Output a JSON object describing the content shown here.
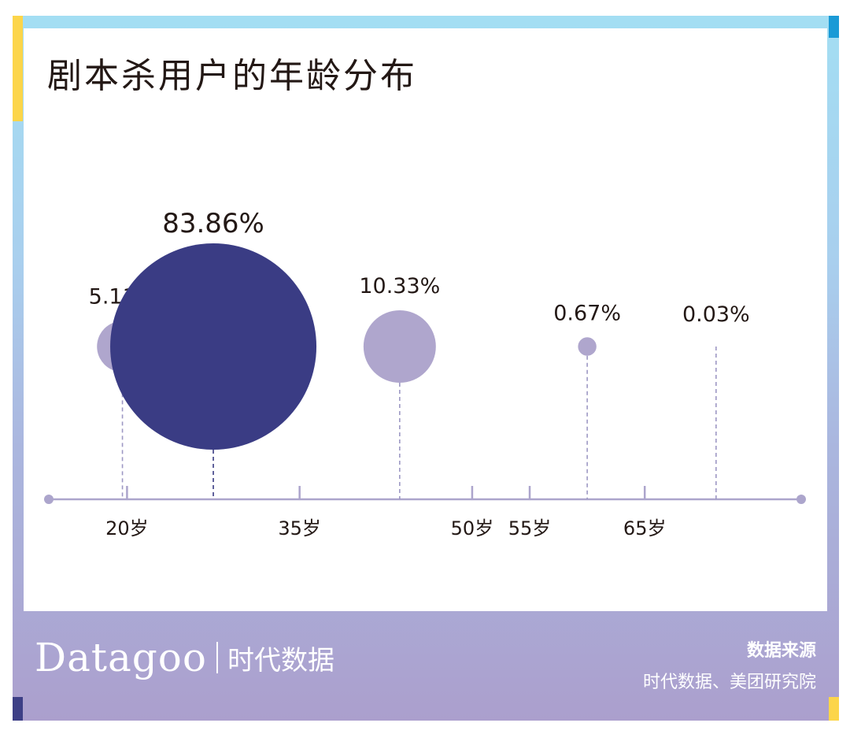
{
  "title": "剧本杀用户的年龄分布",
  "footer": {
    "logo_word": "Datagoo",
    "logo_cn": "时代数据",
    "source_title": "数据来源",
    "source_text": "时代数据、美团研究院"
  },
  "colors": {
    "primary": "#3a3c84",
    "secondary": "#afa6cd",
    "axis": "#aca5cc"
  },
  "chart_data": {
    "type": "scatter",
    "title": "剧本杀用户的年龄分布",
    "xaxis": {
      "ticks": [
        20,
        35,
        50,
        55,
        65
      ],
      "tick_labels": [
        "20岁",
        "35岁",
        "50岁",
        "55岁",
        "65岁"
      ],
      "range": [
        13.2,
        78.6
      ]
    },
    "bubbles": [
      {
        "x": 19.6,
        "value": 5.11,
        "label": "5.11%",
        "color": "#afa6cd"
      },
      {
        "x": 27.5,
        "value": 83.86,
        "label": "83.86%",
        "color": "#3a3c84"
      },
      {
        "x": 43.7,
        "value": 10.33,
        "label": "10.33%",
        "color": "#afa6cd"
      },
      {
        "x": 60.0,
        "value": 0.67,
        "label": "0.67%",
        "color": "#afa6cd"
      },
      {
        "x": 71.2,
        "value": 0.03,
        "label": "0.03%",
        "color": "#afa6cd"
      }
    ]
  }
}
